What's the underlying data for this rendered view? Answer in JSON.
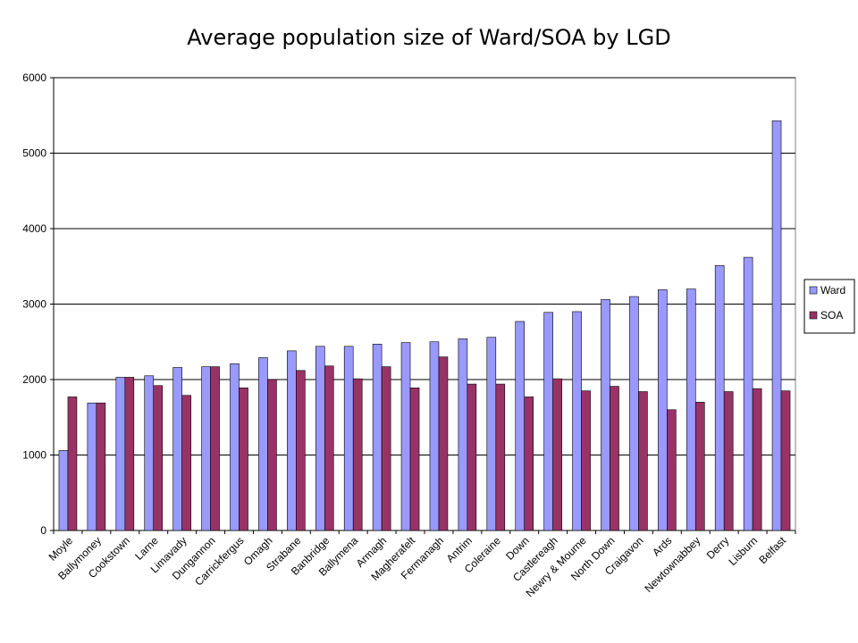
{
  "chart_data": {
    "type": "bar",
    "title": "Average population size of Ward/SOA by LGD",
    "xlabel": "",
    "ylabel": "",
    "ylim": [
      0,
      6000
    ],
    "yticks": [
      0,
      1000,
      2000,
      3000,
      4000,
      5000,
      6000
    ],
    "grid": true,
    "legend": "right",
    "categories": [
      "Moyle",
      "Ballymoney",
      "Cookstown",
      "Larne",
      "Limavady",
      "Dungannon",
      "Carrickfergus",
      "Omagh",
      "Strabane",
      "Banbridge",
      "Ballymena",
      "Armagh",
      "Magherafelt",
      "Fermanagh",
      "Antrim",
      "Coleraine",
      "Down",
      "Castlereagh",
      "Newry & Mourne",
      "North Down",
      "Craigavon",
      "Ards",
      "Newtownabbey",
      "Derry",
      "Lisburn",
      "Belfast"
    ],
    "series": [
      {
        "name": "Ward",
        "color": "#9999ff",
        "values": [
          1060,
          1690,
          2030,
          2050,
          2160,
          2170,
          2210,
          2290,
          2380,
          2440,
          2440,
          2470,
          2490,
          2500,
          2540,
          2560,
          2770,
          2890,
          2900,
          3060,
          3100,
          3190,
          3200,
          3510,
          3620,
          5430
        ]
      },
      {
        "name": "SOA",
        "color": "#993366",
        "values": [
          1770,
          1690,
          2030,
          1920,
          1790,
          2170,
          1890,
          2000,
          2120,
          2180,
          2010,
          2170,
          1890,
          2300,
          1940,
          1940,
          1770,
          2010,
          1850,
          1910,
          1840,
          1600,
          1700,
          1840,
          1880,
          1850
        ]
      }
    ]
  }
}
